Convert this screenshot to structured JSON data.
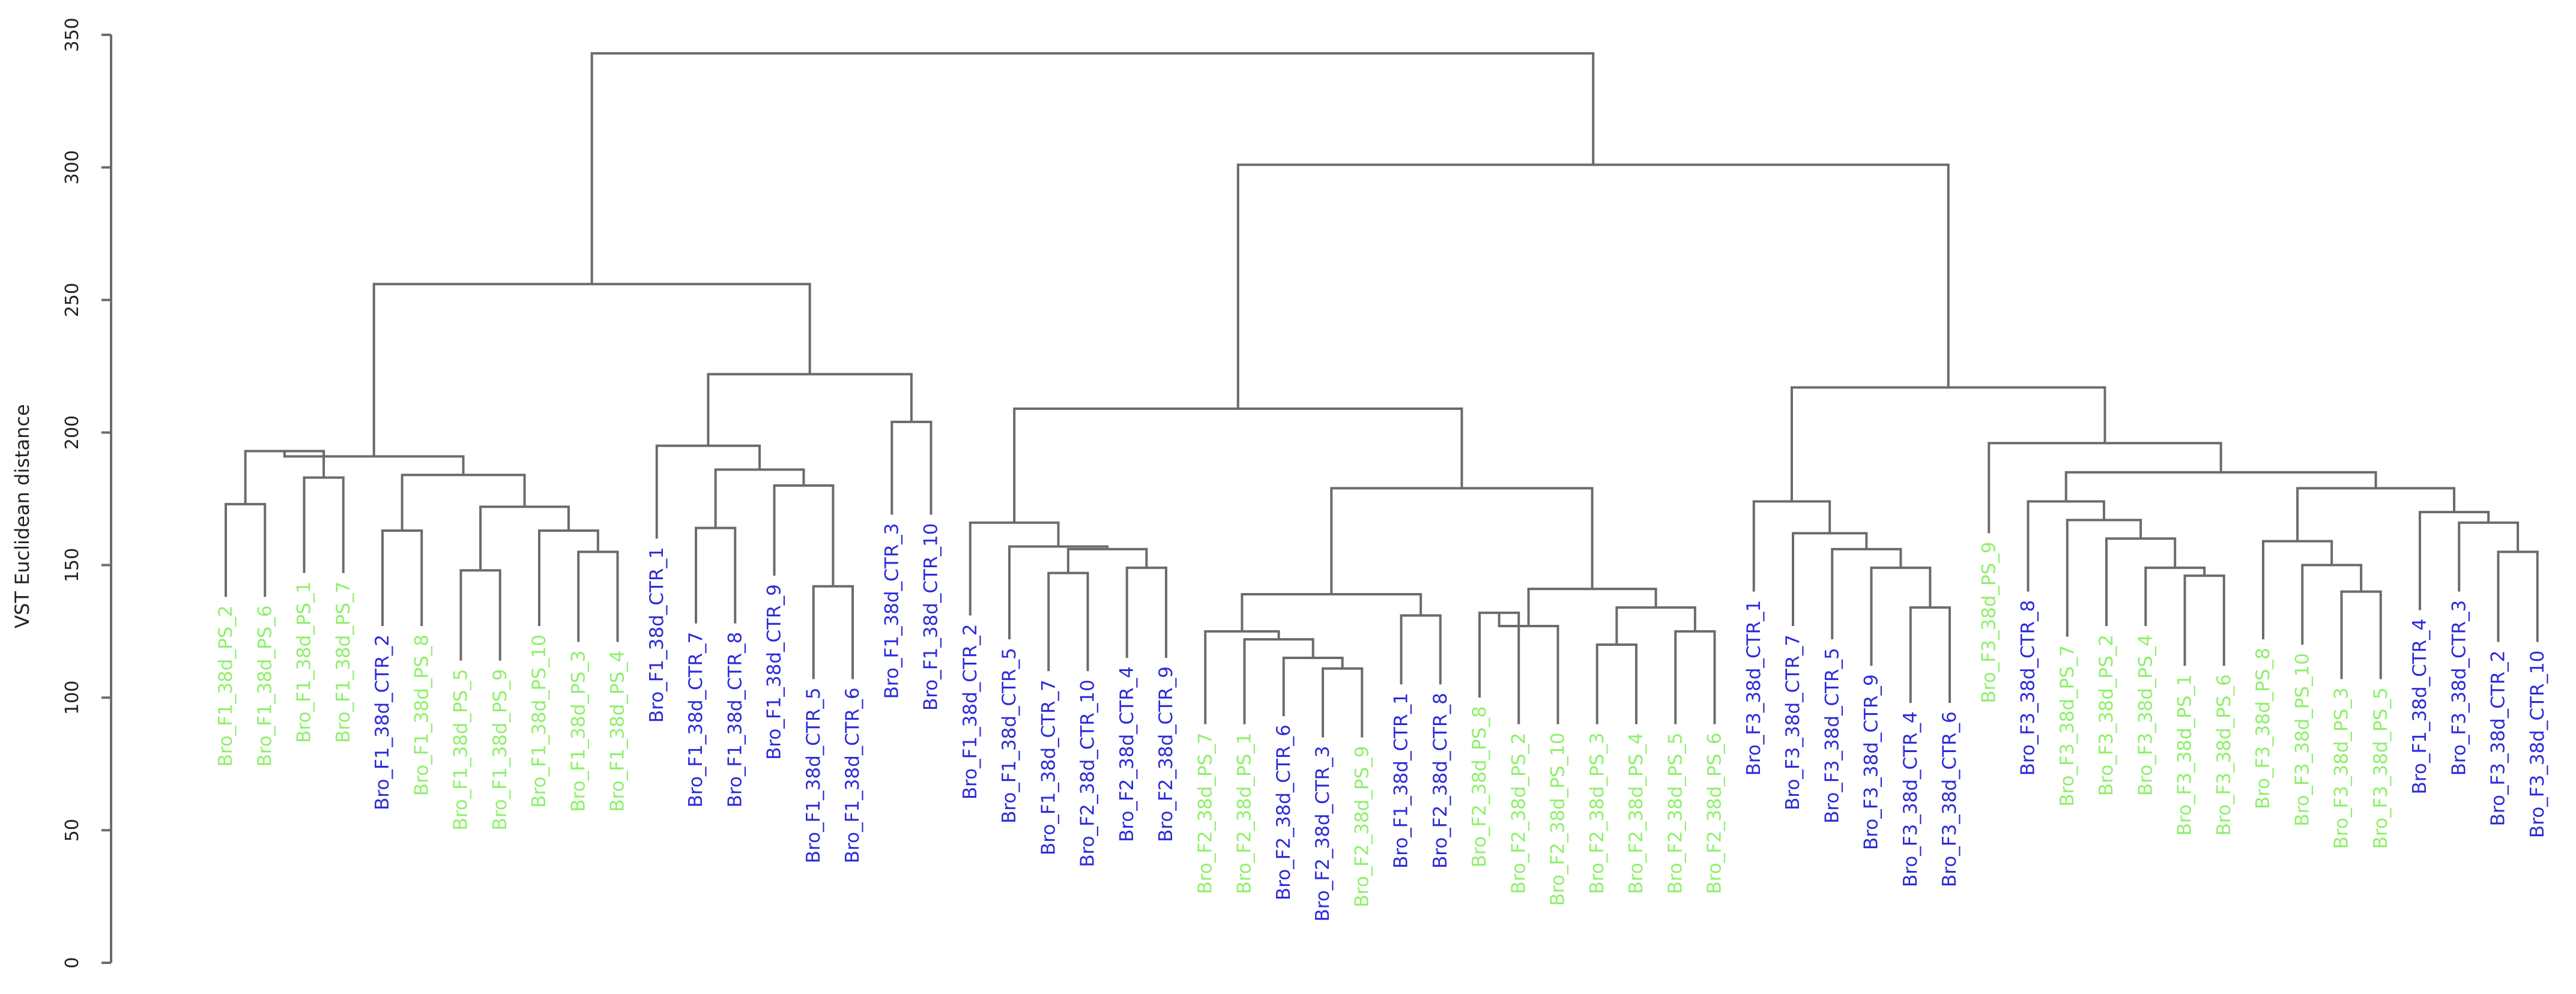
{
  "chart_data": {
    "type": "dendrogram",
    "title": "",
    "ylabel": "VST Euclidean distance",
    "xlabel": "",
    "ylim": [
      0,
      350
    ],
    "yticks": [
      0,
      50,
      100,
      150,
      200,
      250,
      300,
      350
    ],
    "colors": {
      "PS": "#8ef06a",
      "CTR": "#2b2bd8",
      "line": "#6b6b6b"
    },
    "leaves": [
      {
        "label": "Bro_F1_38d_PS_2",
        "group": "PS",
        "top": 138
      },
      {
        "label": "Bro_F1_38d_PS_6",
        "group": "PS",
        "top": 138
      },
      {
        "label": "Bro_F1_38d_PS_1",
        "group": "PS",
        "top": 147
      },
      {
        "label": "Bro_F1_38d_PS_7",
        "group": "PS",
        "top": 147
      },
      {
        "label": "Bro_F1_38d_CTR_2",
        "group": "CTR",
        "top": 127
      },
      {
        "label": "Bro_F1_38d_PS_8",
        "group": "PS",
        "top": 127
      },
      {
        "label": "Bro_F1_38d_PS_5",
        "group": "PS",
        "top": 114
      },
      {
        "label": "Bro_F1_38d_PS_9",
        "group": "PS",
        "top": 114
      },
      {
        "label": "Bro_F1_38d_PS_10",
        "group": "PS",
        "top": 127
      },
      {
        "label": "Bro_F1_38d_PS_3",
        "group": "PS",
        "top": 121
      },
      {
        "label": "Bro_F1_38d_PS_4",
        "group": "PS",
        "top": 121
      },
      {
        "label": "Bro_F1_38d_CTR_1",
        "group": "CTR",
        "top": 160
      },
      {
        "label": "Bro_F1_38d_CTR_7",
        "group": "CTR",
        "top": 128
      },
      {
        "label": "Bro_F1_38d_CTR_8",
        "group": "CTR",
        "top": 128
      },
      {
        "label": "Bro_F1_38d_CTR_9",
        "group": "CTR",
        "top": 146
      },
      {
        "label": "Bro_F1_38d_CTR_5",
        "group": "CTR",
        "top": 107
      },
      {
        "label": "Bro_F1_38d_CTR_6",
        "group": "CTR",
        "top": 107
      },
      {
        "label": "Bro_F1_38d_CTR_3",
        "group": "CTR",
        "top": 169
      },
      {
        "label": "Bro_F1_38d_CTR_10",
        "group": "CTR",
        "top": 169
      },
      {
        "label": "Bro_F1_38d_CTR_2",
        "group": "CTR",
        "top": 131
      },
      {
        "label": "Bro_F1_38d_CTR_5",
        "group": "CTR",
        "top": 122
      },
      {
        "label": "Bro_F1_38d_CTR_7",
        "group": "CTR",
        "top": 110
      },
      {
        "label": "Bro_F2_38d_CTR_10",
        "group": "CTR",
        "top": 110
      },
      {
        "label": "Bro_F2_38d_CTR_4",
        "group": "CTR",
        "top": 115
      },
      {
        "label": "Bro_F2_38d_CTR_9",
        "group": "CTR",
        "top": 115
      },
      {
        "label": "Bro_F2_38d_PS_7",
        "group": "PS",
        "top": 90
      },
      {
        "label": "Bro_F2_38d_PS_1",
        "group": "PS",
        "top": 90
      },
      {
        "label": "Bro_F2_38d_CTR_6",
        "group": "CTR",
        "top": 93
      },
      {
        "label": "Bro_F2_38d_CTR_3",
        "group": "CTR",
        "top": 85
      },
      {
        "label": "Bro_F2_38d_PS_9",
        "group": "PS",
        "top": 85
      },
      {
        "label": "Bro_F1_38d_CTR_1",
        "group": "CTR",
        "top": 105
      },
      {
        "label": "Bro_F2_38d_CTR_8",
        "group": "CTR",
        "top": 105
      },
      {
        "label": "Bro_F2_38d_PS_8",
        "group": "PS",
        "top": 100
      },
      {
        "label": "Bro_F2_38d_PS_2",
        "group": "PS",
        "top": 90
      },
      {
        "label": "Bro_F2_38d_PS_10",
        "group": "PS",
        "top": 90
      },
      {
        "label": "Bro_F2_38d_PS_3",
        "group": "PS",
        "top": 90
      },
      {
        "label": "Bro_F2_38d_PS_4",
        "group": "PS",
        "top": 90
      },
      {
        "label": "Bro_F2_38d_PS_5",
        "group": "PS",
        "top": 90
      },
      {
        "label": "Bro_F2_38d_PS_6",
        "group": "PS",
        "top": 90
      },
      {
        "label": "Bro_F3_38d_CTR_1",
        "group": "CTR",
        "top": 140
      },
      {
        "label": "Bro_F3_38d_CTR_7",
        "group": "CTR",
        "top": 127
      },
      {
        "label": "Bro_F3_38d_CTR_5",
        "group": "CTR",
        "top": 122
      },
      {
        "label": "Bro_F3_38d_CTR_9",
        "group": "CTR",
        "top": 112
      },
      {
        "label": "Bro_F3_38d_CTR_4",
        "group": "CTR",
        "top": 98
      },
      {
        "label": "Bro_F3_38d_CTR_6",
        "group": "CTR",
        "top": 98
      },
      {
        "label": "Bro_F3_38d_PS_9",
        "group": "PS",
        "top": 162
      },
      {
        "label": "Bro_F3_38d_CTR_8",
        "group": "CTR",
        "top": 140
      },
      {
        "label": "Bro_F3_38d_PS_7",
        "group": "PS",
        "top": 123
      },
      {
        "label": "Bro_F3_38d_PS_2",
        "group": "PS",
        "top": 127
      },
      {
        "label": "Bro_F3_38d_PS_4",
        "group": "PS",
        "top": 127
      },
      {
        "label": "Bro_F3_38d_PS_1",
        "group": "PS",
        "top": 112
      },
      {
        "label": "Bro_F3_38d_PS_6",
        "group": "PS",
        "top": 112
      },
      {
        "label": "Bro_F3_38d_PS_8",
        "group": "PS",
        "top": 122
      },
      {
        "label": "Bro_F3_38d_PS_10",
        "group": "PS",
        "top": 120
      },
      {
        "label": "Bro_F3_38d_PS_3",
        "group": "PS",
        "top": 107
      },
      {
        "label": "Bro_F3_38d_PS_5",
        "group": "PS",
        "top": 107
      },
      {
        "label": "Bro_F1_38d_CTR_4",
        "group": "CTR",
        "top": 133
      },
      {
        "label": "Bro_F3_38d_CTR_3",
        "group": "CTR",
        "top": 140
      },
      {
        "label": "Bro_F3_38d_CTR_2",
        "group": "CTR",
        "top": 121
      },
      {
        "label": "Bro_F3_38d_CTR_10",
        "group": "CTR",
        "top": 121
      }
    ],
    "merges": [
      [
        0,
        1,
        173
      ],
      [
        2,
        3,
        183
      ],
      [
        -1,
        -2,
        193
      ],
      [
        9,
        10,
        155
      ],
      [
        8,
        -4,
        163
      ],
      [
        6,
        7,
        148
      ],
      [
        -6,
        -5,
        172
      ],
      [
        4,
        5,
        163
      ],
      [
        -8,
        -7,
        184
      ],
      [
        -3,
        -9,
        191
      ],
      [
        15,
        16,
        142
      ],
      [
        14,
        -11,
        180
      ],
      [
        12,
        13,
        164
      ],
      [
        -13,
        -12,
        186
      ],
      [
        11,
        -14,
        195
      ],
      [
        17,
        18,
        204
      ],
      [
        -15,
        -16,
        222
      ],
      [
        -10,
        -17,
        256
      ],
      [
        21,
        22,
        147
      ],
      [
        23,
        24,
        149
      ],
      [
        -19,
        -20,
        156
      ],
      [
        20,
        -21,
        157
      ],
      [
        19,
        -22,
        166
      ],
      [
        28,
        29,
        111
      ],
      [
        27,
        -24,
        115
      ],
      [
        26,
        -25,
        122
      ],
      [
        25,
        -26,
        125
      ],
      [
        30,
        31,
        131
      ],
      [
        -27,
        -28,
        139
      ],
      [
        32,
        33,
        132
      ],
      [
        35,
        36,
        120
      ],
      [
        37,
        38,
        125
      ],
      [
        -31,
        -32,
        134
      ],
      [
        34,
        -30,
        127
      ],
      [
        -34,
        -33,
        141
      ],
      [
        -29,
        -35,
        179
      ],
      [
        -23,
        -36,
        209
      ],
      [
        43,
        44,
        134
      ],
      [
        42,
        -38,
        149
      ],
      [
        41,
        -39,
        156
      ],
      [
        40,
        -40,
        162
      ],
      [
        39,
        -41,
        174
      ],
      [
        50,
        51,
        146
      ],
      [
        49,
        -43,
        149
      ],
      [
        48,
        -44,
        160
      ],
      [
        47,
        -45,
        167
      ],
      [
        46,
        -46,
        174
      ],
      [
        54,
        55,
        140
      ],
      [
        53,
        -48,
        150
      ],
      [
        52,
        -49,
        159
      ],
      [
        58,
        59,
        155
      ],
      [
        57,
        -51,
        166
      ],
      [
        56,
        -52,
        170
      ],
      [
        -50,
        -53,
        179
      ],
      [
        -47,
        -54,
        185
      ],
      [
        45,
        -55,
        196
      ],
      [
        -42,
        -56,
        217
      ],
      [
        -37,
        -57,
        301
      ],
      [
        -18,
        -58,
        343
      ]
    ]
  }
}
